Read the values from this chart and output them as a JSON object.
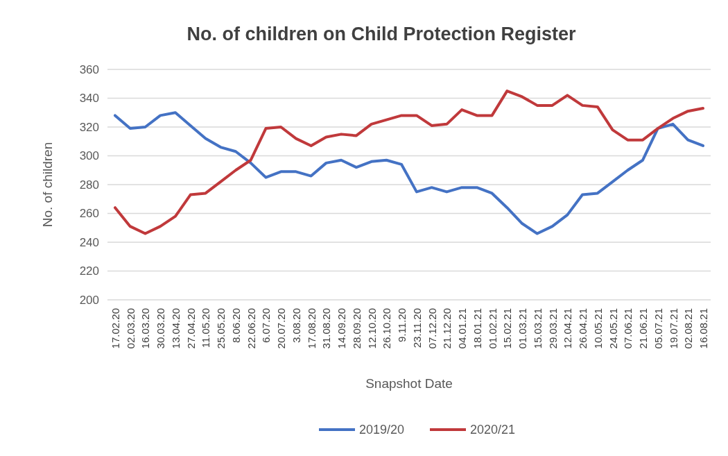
{
  "chart_data": {
    "type": "line",
    "title": "No. of children on Child Protection Register",
    "xlabel": "Snapshot Date",
    "ylabel": "No. of children",
    "categories": [
      "17.02.20",
      "02.03.20",
      "16.03.20",
      "30.03.20",
      "13.04.20",
      "27.04.20",
      "11.05.20",
      "25.05.20",
      "8.06.20",
      "22.06.20",
      "6.07.20",
      "20.07.20",
      "3.08.20",
      "17.08.20",
      "31.08.20",
      "14.09.20",
      "28.09.20",
      "12.10.20",
      "26.10.20",
      "9.11.20",
      "23.11.20",
      "07.12.20",
      "21.12.20",
      "04.01.21",
      "18.01.21",
      "01.02.21",
      "15.02.21",
      "01.03.21",
      "15.03.21",
      "29.03.21",
      "12.04.21",
      "26.04.21",
      "10.05.21",
      "24.05.21",
      "07.06.21",
      "21.06.21",
      "05.07.21",
      "19.07.21",
      "02.08.21",
      "16.08.21"
    ],
    "series": [
      {
        "name": "2019/20",
        "color": "#4472c4",
        "values": [
          328,
          319,
          320,
          328,
          330,
          321,
          312,
          306,
          303,
          295,
          285,
          289,
          289,
          286,
          295,
          297,
          292,
          296,
          297,
          294,
          275,
          278,
          275,
          278,
          278,
          274,
          264,
          253,
          246,
          251,
          259,
          273,
          274,
          282,
          290,
          297,
          319,
          322,
          311,
          307
        ]
      },
      {
        "name": "2020/21",
        "color": "#c0393b",
        "values": [
          264,
          251,
          246,
          251,
          258,
          273,
          274,
          282,
          290,
          297,
          319,
          320,
          312,
          307,
          313,
          315,
          314,
          322,
          325,
          328,
          328,
          321,
          322,
          332,
          328,
          328,
          345,
          341,
          335,
          335,
          342,
          335,
          334,
          318,
          311,
          311,
          319,
          326,
          331,
          333
        ]
      }
    ],
    "ylim": [
      200,
      360
    ],
    "yticks": [
      200,
      220,
      240,
      260,
      280,
      300,
      320,
      340,
      360
    ],
    "grid": "y",
    "legend": "bottom",
    "marker": "none",
    "line_style": "solid"
  }
}
